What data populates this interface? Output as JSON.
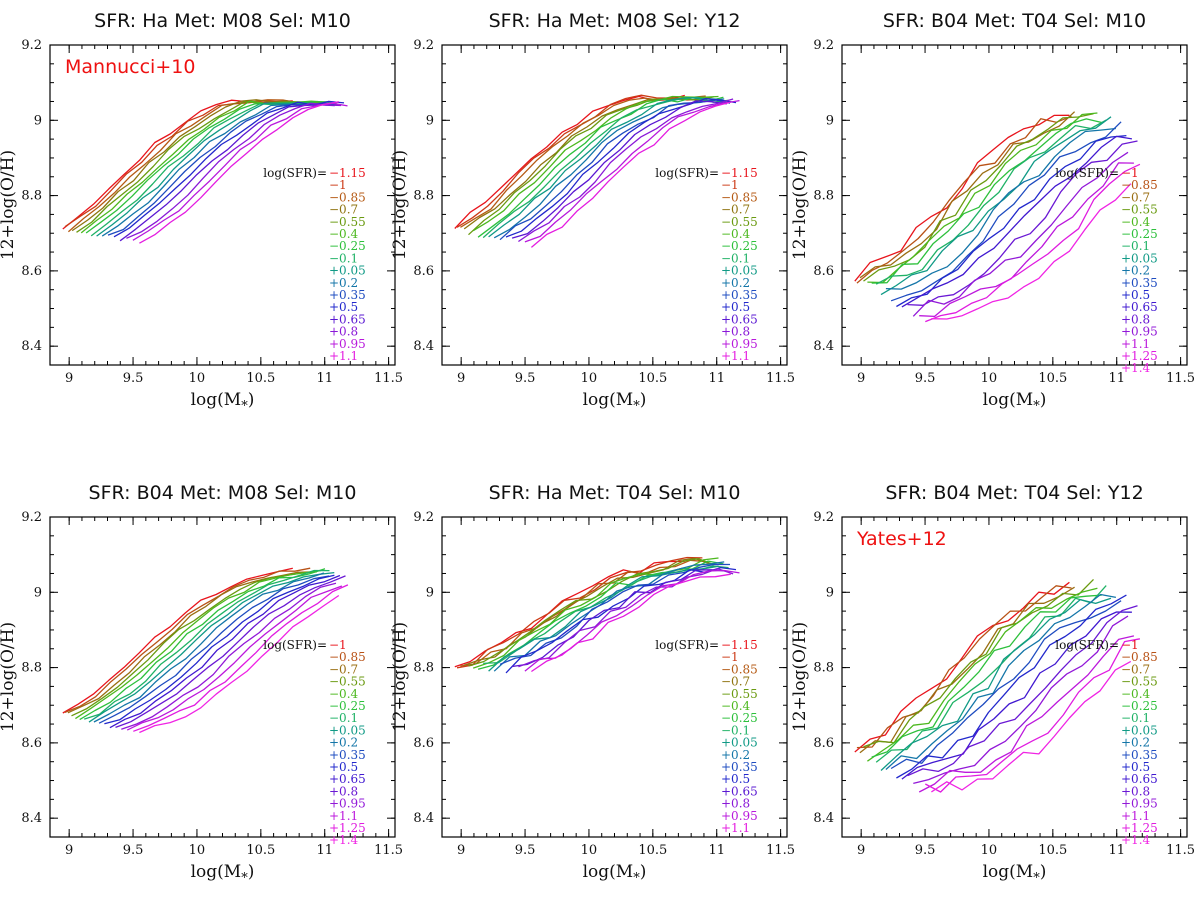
{
  "figure": {
    "panels_common": {
      "xlabel": "log(M",
      "xlabel_sub": "*",
      "xlabel_close": ")",
      "ylabel": "12+log(O/H)",
      "xlim": [
        8.85,
        11.55
      ],
      "ylim": [
        8.35,
        9.2
      ],
      "xticks": [
        9,
        9.5,
        10,
        10.5,
        11,
        11.5
      ],
      "xtick_labels": [
        "9",
        "9.5",
        "10",
        "10.5",
        "11",
        "11.5"
      ],
      "yticks": [
        8.4,
        8.6,
        8.8,
        9,
        9.2
      ],
      "ytick_labels": [
        "8.4",
        "8.6",
        "8.8",
        "9",
        "9.2"
      ],
      "legend_title": "log(SFR)="
    }
  },
  "chart_data": [
    {
      "type": "line",
      "title": "SFR: Ha Met: M08 Sel: M10",
      "annotation": "Mannucci+10",
      "legend": [
        "−1.15",
        "−1",
        "−0.85",
        "−0.7",
        "−0.55",
        "−0.4",
        "−0.25",
        "−0.1",
        "+0.05",
        "+0.2",
        "+0.35",
        "+0.5",
        "+0.65",
        "+0.8",
        "+0.95",
        "+1.1"
      ],
      "colors": [
        "#e8141c",
        "#cc3a16",
        "#b55a14",
        "#8f7410",
        "#6a9a10",
        "#4cb81e",
        "#2dc03c",
        "#1fb266",
        "#109a86",
        "#1476a8",
        "#1e4cc0",
        "#2228cc",
        "#5a18d2",
        "#8a18d8",
        "#b818dc",
        "#e41ce0"
      ],
      "model": {
        "a": 8.6,
        "b": 0.5,
        "c": 9.05,
        "d": 0.003,
        "x0": 9.4,
        "s": 0.42,
        "smax": 0.62,
        "jitter": 0.006
      }
    },
    {
      "type": "line",
      "title": "SFR: Ha Met: M08 Sel: Y12",
      "annotation": "",
      "legend": [
        "−1.15",
        "−1",
        "−0.85",
        "−0.7",
        "−0.55",
        "−0.4",
        "−0.25",
        "−0.1",
        "+0.05",
        "+0.2",
        "+0.35",
        "+0.5",
        "+0.65",
        "+0.8",
        "+0.95",
        "+1.1"
      ],
      "colors": [
        "#e8141c",
        "#cc3a16",
        "#b55a14",
        "#8f7410",
        "#6a9a10",
        "#4cb81e",
        "#2dc03c",
        "#1fb266",
        "#109a86",
        "#1476a8",
        "#1e4cc0",
        "#2228cc",
        "#5a18d2",
        "#8a18d8",
        "#b818dc",
        "#e41ce0"
      ],
      "model": {
        "a": 8.6,
        "b": 0.5,
        "c": 9.06,
        "d": 0.005,
        "x0": 9.4,
        "s": 0.42,
        "smax": 0.62,
        "jitter": 0.008
      }
    },
    {
      "type": "line",
      "title": "SFR: B04 Met: T04 Sel: M10",
      "annotation": "",
      "legend": [
        "−1",
        "−0.85",
        "−0.7",
        "−0.55",
        "−0.4",
        "−0.25",
        "−0.1",
        "+0.05",
        "+0.2",
        "+0.35",
        "+0.5",
        "+0.65",
        "+0.8",
        "+0.95",
        "+1.1",
        "+1.25",
        "+1.4"
      ],
      "colors": [
        "#e8141c",
        "#b85216",
        "#9a6e12",
        "#6a9a10",
        "#4cb81e",
        "#2dc03c",
        "#1fb266",
        "#109a86",
        "#1476a8",
        "#1e4cc0",
        "#2228cc",
        "#4018d0",
        "#6a18d4",
        "#9218d8",
        "#bc18dc",
        "#e01ce0",
        "#f024e4"
      ],
      "model": {
        "a": 8.52,
        "b": 0.55,
        "c": 9.25,
        "d": 0.028,
        "x0": 9.7,
        "s": 0.3,
        "smax": 0.9,
        "jitter": 0.018
      }
    },
    {
      "type": "line",
      "title": "SFR: B04 Met: M08 Sel: M10",
      "annotation": "",
      "legend": [
        "−1",
        "−0.85",
        "−0.7",
        "−0.55",
        "−0.4",
        "−0.25",
        "−0.1",
        "+0.05",
        "+0.2",
        "+0.35",
        "+0.5",
        "+0.65",
        "+0.8",
        "+0.95",
        "+1.1",
        "+1.25",
        "+1.4"
      ],
      "colors": [
        "#e8141c",
        "#b85216",
        "#9a6e12",
        "#6a9a10",
        "#4cb81e",
        "#2dc03c",
        "#1fb266",
        "#109a86",
        "#1476a8",
        "#1e4cc0",
        "#2228cc",
        "#4018d0",
        "#6a18d4",
        "#9218d8",
        "#bc18dc",
        "#e01ce0",
        "#f024e4"
      ],
      "model": {
        "a": 8.6,
        "b": 0.48,
        "c": 9.06,
        "d": 0.002,
        "x0": 9.55,
        "s": 0.48,
        "smax": 0.78,
        "jitter": 0.006
      }
    },
    {
      "type": "line",
      "title": "SFR: Ha Met: T04 Sel: M10",
      "annotation": "",
      "legend": [
        "−1.15",
        "−1",
        "−0.85",
        "−0.7",
        "−0.55",
        "−0.4",
        "−0.25",
        "−0.1",
        "+0.05",
        "+0.2",
        "+0.35",
        "+0.5",
        "+0.65",
        "+0.8",
        "+0.95",
        "+1.1"
      ],
      "colors": [
        "#e8141c",
        "#cc3a16",
        "#b55a14",
        "#8f7410",
        "#6a9a10",
        "#4cb81e",
        "#2dc03c",
        "#1fb266",
        "#109a86",
        "#1476a8",
        "#1e4cc0",
        "#2228cc",
        "#5a18d2",
        "#8a18d8",
        "#b818dc",
        "#e41ce0"
      ],
      "model": {
        "a": 8.75,
        "b": 0.35,
        "c": 9.1,
        "d": 0.012,
        "x0": 9.6,
        "s": 0.16,
        "smax": 0.38,
        "jitter": 0.012
      }
    },
    {
      "type": "line",
      "title": "SFR: B04 Met: T04 Sel: Y12",
      "annotation": "Yates+12",
      "legend": [
        "−1",
        "−0.85",
        "−0.7",
        "−0.55",
        "−0.4",
        "−0.25",
        "−0.1",
        "+0.05",
        "+0.2",
        "+0.35",
        "+0.5",
        "+0.65",
        "+0.8",
        "+0.95",
        "+1.1",
        "+1.25",
        "+1.4"
      ],
      "colors": [
        "#e8141c",
        "#b85216",
        "#9a6e12",
        "#6a9a10",
        "#4cb81e",
        "#2dc03c",
        "#1fb266",
        "#109a86",
        "#1476a8",
        "#1e4cc0",
        "#2228cc",
        "#4018d0",
        "#6a18d4",
        "#9218d8",
        "#bc18dc",
        "#e01ce0",
        "#f024e4"
      ],
      "model": {
        "a": 8.52,
        "b": 0.55,
        "c": 9.25,
        "d": 0.028,
        "x0": 9.7,
        "s": 0.3,
        "smax": 0.9,
        "jitter": 0.02
      }
    }
  ]
}
